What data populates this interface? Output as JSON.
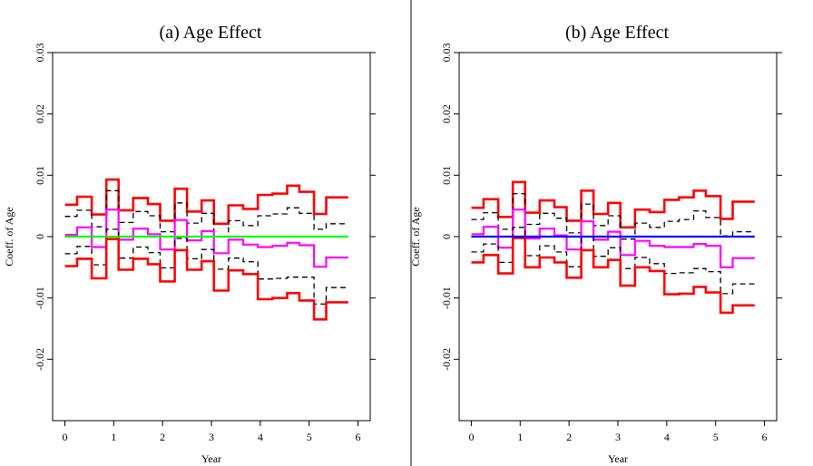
{
  "chart_data": [
    {
      "type": "line",
      "title": "(a) Age Effect",
      "xlabel": "Year",
      "ylabel": "Coeff. of Age",
      "xlim": [
        -0.25,
        6.25
      ],
      "ylim": [
        -0.03,
        0.03
      ],
      "xticks": [
        0,
        1,
        2,
        3,
        4,
        5,
        6
      ],
      "xtick_labels": [
        "0",
        "1",
        "2",
        "3",
        "4",
        "5",
        "6"
      ],
      "yticks": [
        -0.02,
        -0.01,
        0,
        0.01,
        0.02,
        0.03
      ],
      "ytick_labels": [
        "-0.02",
        "-0.01",
        "0",
        "0.01",
        "0.02",
        "0.03"
      ],
      "grid": false,
      "step_x": [
        0,
        0.25,
        0.55,
        0.85,
        1.1,
        1.4,
        1.7,
        1.95,
        2.25,
        2.5,
        2.8,
        3.05,
        3.35,
        3.65,
        3.95,
        4.25,
        4.55,
        4.8,
        5.1,
        5.35,
        5.8
      ],
      "series": [
        {
          "color": "#ff0000",
          "dash": "",
          "width": 2.6,
          "values": [
            0.0052,
            0.0065,
            0.0036,
            0.0093,
            0.0043,
            0.0063,
            0.0053,
            0.0026,
            0.0078,
            0.0041,
            0.0059,
            0.0021,
            0.0051,
            0.0045,
            0.0068,
            0.007,
            0.0083,
            0.0073,
            0.0037,
            0.0064
          ]
        },
        {
          "color": "#000000",
          "dash": "6,4",
          "width": 1.3,
          "values": [
            0.0033,
            0.0043,
            0.0016,
            0.0075,
            0.0023,
            0.0041,
            0.0034,
            0.0008,
            0.0055,
            0.0022,
            0.0038,
            0.0,
            0.0026,
            0.0018,
            0.0034,
            0.0037,
            0.0047,
            0.0038,
            0.0012,
            0.0021
          ]
        },
        {
          "color": "#ff00ff",
          "dash": "",
          "width": 2.2,
          "values": [
            0.0003,
            0.0015,
            -0.0017,
            0.0044,
            -0.0005,
            0.0013,
            0.0004,
            -0.0021,
            0.0027,
            -0.0006,
            0.0009,
            -0.0027,
            -0.0005,
            -0.0013,
            -0.0017,
            -0.0015,
            -0.001,
            -0.0014,
            -0.0049,
            -0.0034
          ]
        },
        {
          "color": "#000000",
          "dash": "6,4",
          "width": 1.3,
          "values": [
            -0.0028,
            -0.0016,
            -0.0046,
            0.0012,
            -0.0035,
            -0.0017,
            -0.0026,
            -0.0051,
            -0.0003,
            -0.0036,
            -0.0021,
            -0.0053,
            -0.0035,
            -0.0041,
            -0.0069,
            -0.0068,
            -0.0066,
            -0.0066,
            -0.011,
            -0.0083
          ]
        },
        {
          "color": "#ff0000",
          "dash": "",
          "width": 2.6,
          "values": [
            -0.0048,
            -0.0036,
            -0.0068,
            -0.0004,
            -0.0054,
            -0.0036,
            -0.0045,
            -0.0073,
            -0.0022,
            -0.0054,
            -0.004,
            -0.0088,
            -0.0055,
            -0.0061,
            -0.0102,
            -0.01,
            -0.0092,
            -0.0104,
            -0.0135,
            -0.0107
          ]
        }
      ],
      "zero_line": {
        "y": 0,
        "color": "#00ff00",
        "width": 2.2
      }
    },
    {
      "type": "line",
      "title": "(b) Age Effect",
      "xlabel": "Year",
      "ylabel": "Coeff. of Age",
      "xlim": [
        -0.25,
        6.25
      ],
      "ylim": [
        -0.03,
        0.03
      ],
      "xticks": [
        0,
        1,
        2,
        3,
        4,
        5,
        6
      ],
      "xtick_labels": [
        "0",
        "1",
        "2",
        "3",
        "4",
        "5",
        "6"
      ],
      "yticks": [
        -0.02,
        -0.01,
        0,
        0.01,
        0.02,
        0.03
      ],
      "ytick_labels": [
        "-0.02",
        "-0.01",
        "0",
        "0.01",
        "0.02",
        "0.03"
      ],
      "grid": false,
      "step_x": [
        0,
        0.25,
        0.55,
        0.85,
        1.1,
        1.4,
        1.7,
        1.95,
        2.25,
        2.5,
        2.8,
        3.05,
        3.35,
        3.65,
        3.95,
        4.25,
        4.55,
        4.8,
        5.1,
        5.35,
        5.8
      ],
      "series": [
        {
          "color": "#ff0000",
          "dash": "",
          "width": 2.6,
          "values": [
            0.0047,
            0.0061,
            0.0032,
            0.0089,
            0.0039,
            0.0059,
            0.0048,
            0.0026,
            0.0075,
            0.0037,
            0.0055,
            0.0015,
            0.0044,
            0.004,
            0.006,
            0.0064,
            0.0075,
            0.0066,
            0.0029,
            0.0057
          ]
        },
        {
          "color": "#000000",
          "dash": "6,4",
          "width": 1.3,
          "values": [
            0.0028,
            0.0039,
            0.0012,
            0.007,
            0.002,
            0.0038,
            0.003,
            0.0006,
            0.0053,
            0.0018,
            0.0034,
            -0.0004,
            0.0022,
            0.0015,
            0.0025,
            0.0028,
            0.0042,
            0.0031,
            0.0001,
            0.0008
          ]
        },
        {
          "color": "#ff00ff",
          "dash": "",
          "width": 2.2,
          "values": [
            0.0004,
            0.0016,
            -0.0018,
            0.0044,
            -0.0003,
            0.0013,
            0.0002,
            -0.0021,
            0.0025,
            -0.0005,
            0.0008,
            -0.003,
            -0.0007,
            -0.0015,
            -0.0017,
            -0.0017,
            -0.0012,
            -0.0015,
            -0.005,
            -0.0035
          ]
        },
        {
          "color": "#000000",
          "dash": "6,4",
          "width": 1.3,
          "values": [
            -0.0025,
            -0.0012,
            -0.0042,
            0.0015,
            -0.0031,
            -0.0015,
            -0.0025,
            -0.0049,
            0.0,
            -0.0032,
            -0.0018,
            -0.0052,
            -0.0034,
            -0.0044,
            -0.006,
            -0.0059,
            -0.0052,
            -0.0057,
            -0.0093,
            -0.0077
          ]
        },
        {
          "color": "#ff0000",
          "dash": "",
          "width": 2.6,
          "values": [
            -0.0042,
            -0.003,
            -0.006,
            -0.0002,
            -0.005,
            -0.0034,
            -0.0042,
            -0.0067,
            -0.0022,
            -0.005,
            -0.0038,
            -0.008,
            -0.005,
            -0.0056,
            -0.0094,
            -0.0093,
            -0.0082,
            -0.0091,
            -0.0124,
            -0.0112
          ]
        }
      ],
      "zero_line": {
        "y": 0,
        "color": "#0000ff",
        "width": 2.2
      }
    }
  ]
}
